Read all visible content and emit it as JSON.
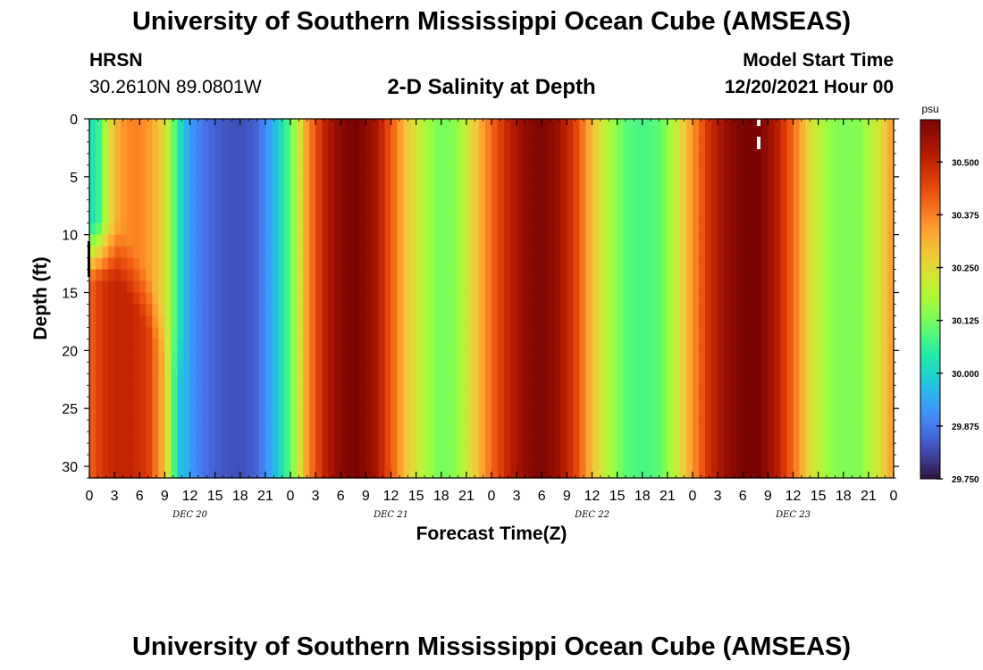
{
  "header": {
    "title": "University of Southern Mississippi Ocean Cube (AMSEAS)",
    "station": "HRSN",
    "coords": "30.2610N  89.0801W",
    "chart_title": "2-D Salinity at Depth",
    "start_label": "Model Start Time",
    "start_value": "12/20/2021 Hour 00"
  },
  "footer": {
    "title": "University of Southern Mississippi Ocean Cube (AMSEAS)"
  },
  "chart_data": {
    "type": "heatmap",
    "title": "2-D Salinity at Depth",
    "xlabel": "Forecast Time(Z)",
    "ylabel": "Depth (ft)",
    "units": "psu",
    "x_range_hours": [
      0,
      96
    ],
    "y_range_ft": [
      0,
      31
    ],
    "x_tick_labels": [
      "0",
      "3",
      "6",
      "9",
      "12",
      "15",
      "18",
      "21",
      "0",
      "3",
      "6",
      "9",
      "12",
      "15",
      "18",
      "21",
      "0",
      "3",
      "6",
      "9",
      "12",
      "15",
      "18",
      "21",
      "0",
      "3",
      "6",
      "9",
      "12",
      "15",
      "18",
      "21",
      "0"
    ],
    "date_labels": [
      "DEC 20",
      "DEC 21",
      "DEC 22",
      "DEC 23"
    ],
    "y_ticks": [
      0,
      5,
      10,
      15,
      20,
      25,
      30
    ],
    "colorbar": {
      "min": 29.75,
      "max": 30.6,
      "tick_values": [
        29.75,
        29.875,
        30.0,
        30.125,
        30.25,
        30.375,
        30.5
      ],
      "tick_labels": [
        "29.750",
        "29.875",
        "30.000",
        "30.125",
        "30.250",
        "30.375",
        "30.500"
      ]
    },
    "surface_salinity_by_hour": [
      [
        0,
        30.02
      ],
      [
        1,
        30.05
      ],
      [
        2,
        30.18
      ],
      [
        3,
        30.3
      ],
      [
        4,
        30.35
      ],
      [
        5,
        30.37
      ],
      [
        6,
        30.37
      ],
      [
        7,
        30.35
      ],
      [
        8,
        30.3
      ],
      [
        9,
        30.25
      ],
      [
        10,
        30.12
      ],
      [
        11,
        30.0
      ],
      [
        12,
        29.92
      ],
      [
        14,
        29.86
      ],
      [
        16,
        29.83
      ],
      [
        18,
        29.82
      ],
      [
        20,
        29.85
      ],
      [
        22,
        29.95
      ],
      [
        24,
        30.1
      ],
      [
        26,
        30.35
      ],
      [
        28,
        30.5
      ],
      [
        30,
        30.58
      ],
      [
        32,
        30.6
      ],
      [
        34,
        30.55
      ],
      [
        36,
        30.42
      ],
      [
        38,
        30.28
      ],
      [
        40,
        30.18
      ],
      [
        42,
        30.12
      ],
      [
        44,
        30.15
      ],
      [
        46,
        30.28
      ],
      [
        48,
        30.4
      ],
      [
        50,
        30.5
      ],
      [
        52,
        30.57
      ],
      [
        54,
        30.6
      ],
      [
        56,
        30.55
      ],
      [
        58,
        30.45
      ],
      [
        60,
        30.3
      ],
      [
        62,
        30.18
      ],
      [
        64,
        30.1
      ],
      [
        66,
        30.08
      ],
      [
        68,
        30.1
      ],
      [
        70,
        30.2
      ],
      [
        72,
        30.35
      ],
      [
        74,
        30.48
      ],
      [
        76,
        30.56
      ],
      [
        78,
        30.6
      ],
      [
        80,
        30.6
      ],
      [
        82,
        30.52
      ],
      [
        84,
        30.4
      ],
      [
        86,
        30.25
      ],
      [
        88,
        30.16
      ],
      [
        90,
        30.13
      ],
      [
        92,
        30.14
      ],
      [
        94,
        30.22
      ],
      [
        96,
        30.35
      ]
    ],
    "bottom_salinity_by_hour": [
      [
        0,
        30.4
      ],
      [
        1,
        30.45
      ],
      [
        2,
        30.48
      ],
      [
        3,
        30.5
      ],
      [
        5,
        30.5
      ],
      [
        7,
        30.46
      ],
      [
        8,
        30.38
      ],
      [
        9,
        30.3
      ],
      [
        10,
        30.1
      ],
      [
        11,
        29.95
      ]
    ]
  }
}
